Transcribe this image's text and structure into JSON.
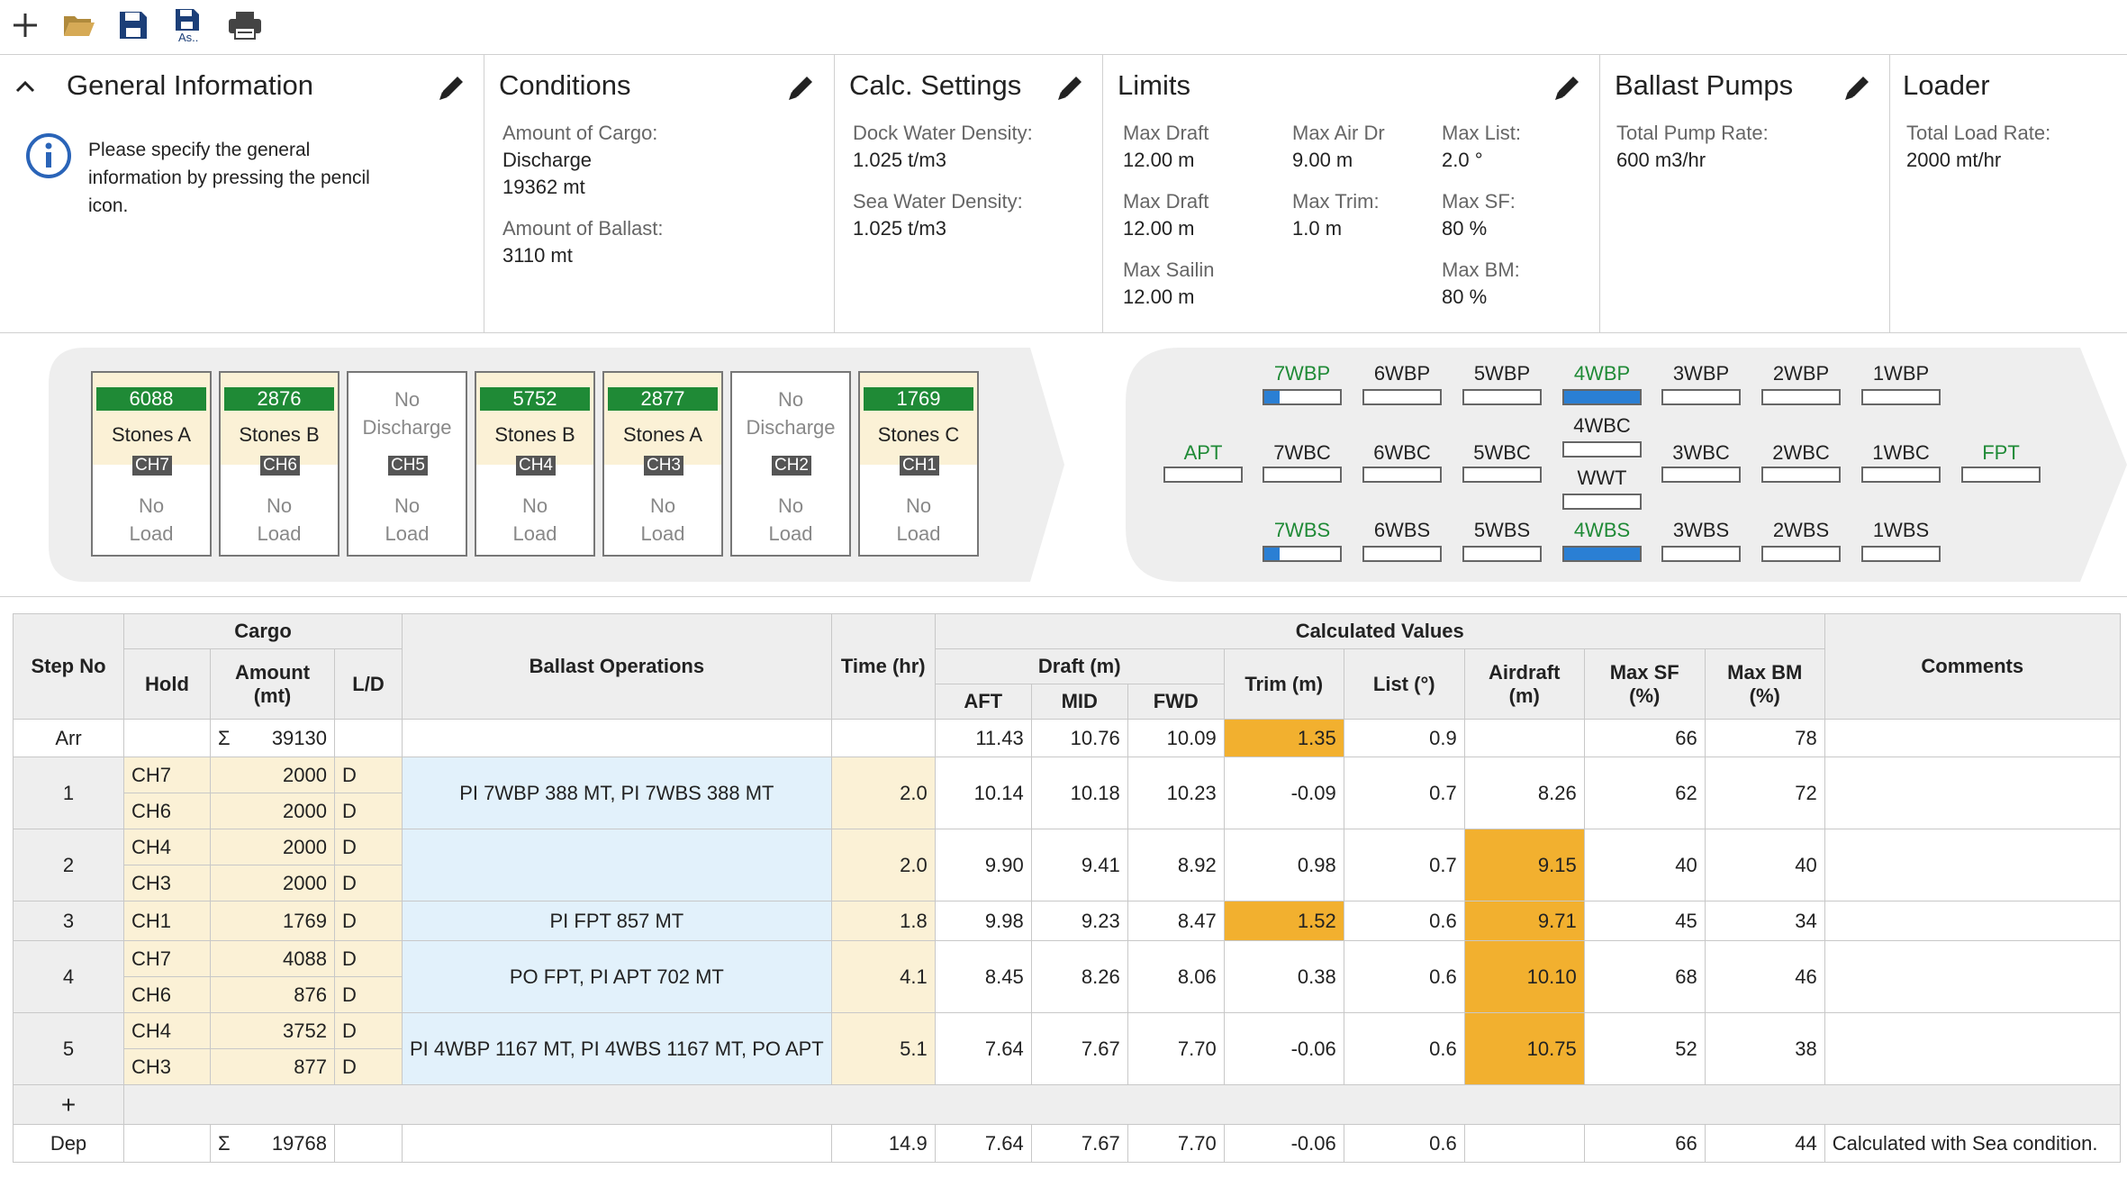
{
  "toolbar": {
    "icons": [
      "plus-icon",
      "folder-open-icon",
      "save-icon",
      "save-as-icon",
      "print-icon"
    ],
    "save_as_label": "As.."
  },
  "general": {
    "title": "General Information",
    "info": "Please specify the general information by pressing the pencil icon.",
    "info_lines": [
      "Please specify the general",
      "information by pressing the pencil",
      "icon."
    ]
  },
  "conditions": {
    "title": "Conditions",
    "cargo_label": "Amount of Cargo:",
    "cargo_mode": "Discharge",
    "cargo_value": "19362 mt",
    "ballast_label": "Amount of Ballast:",
    "ballast_value": "3110 mt"
  },
  "calc": {
    "title": "Calc. Settings",
    "dock_label": "Dock Water Density:",
    "dock_value": "1.025 t/m3",
    "sea_label": "Sea Water Density:",
    "sea_value": "1.025 t/m3"
  },
  "limits": {
    "title": "Limits",
    "items": [
      {
        "label": "Max Draft",
        "value": "12.00 m"
      },
      {
        "label": "Max Air Dr",
        "value": "9.00 m"
      },
      {
        "label": "Max List:",
        "value": "2.0 °"
      },
      {
        "label": "Max Draft",
        "value": "12.00 m"
      },
      {
        "label": "Max Trim:",
        "value": "1.0 m"
      },
      {
        "label": "Max SF:",
        "value": "80 %"
      },
      {
        "label": "Max Sailin",
        "value": "12.00 m"
      },
      {
        "label": "Max BM:",
        "value": "80 %"
      }
    ]
  },
  "pumps": {
    "title": "Ballast Pumps",
    "label": "Total Pump Rate:",
    "value": "600 m3/hr"
  },
  "loader": {
    "title": "Loader",
    "label": "Total Load Rate:",
    "value": "2000 mt/hr"
  },
  "holds": [
    {
      "num": "6088",
      "name": "Stones A",
      "ch": "CH7",
      "load": [
        "No",
        "Load"
      ]
    },
    {
      "num": "2876",
      "name": "Stones B",
      "ch": "CH6",
      "load": [
        "No",
        "Load"
      ]
    },
    {
      "num": "",
      "name": "",
      "nodis": [
        "No",
        "Discharge"
      ],
      "ch": "CH5",
      "load": [
        "No",
        "Load"
      ]
    },
    {
      "num": "5752",
      "name": "Stones B",
      "ch": "CH4",
      "load": [
        "No",
        "Load"
      ]
    },
    {
      "num": "2877",
      "name": "Stones A",
      "ch": "CH3",
      "load": [
        "No",
        "Load"
      ]
    },
    {
      "num": "",
      "name": "",
      "nodis": [
        "No",
        "Discharge"
      ],
      "ch": "CH2",
      "load": [
        "No",
        "Load"
      ]
    },
    {
      "num": "1769",
      "name": "Stones C",
      "ch": "CH1",
      "load": [
        "No",
        "Load"
      ]
    }
  ],
  "tanks": {
    "row1": [
      {
        "label": "7WBP",
        "green": true,
        "fill": 0.2
      },
      {
        "label": "6WBP",
        "green": false,
        "fill": 0
      },
      {
        "label": "5WBP",
        "green": false,
        "fill": 0
      },
      {
        "label": "4WBP",
        "green": true,
        "fill": 1.0
      },
      {
        "label": "3WBP",
        "green": false,
        "fill": 0
      },
      {
        "label": "2WBP",
        "green": false,
        "fill": 0
      },
      {
        "label": "1WBP",
        "green": false,
        "fill": 0
      }
    ],
    "row2": [
      {
        "label": "APT",
        "green": true,
        "fill": 0
      },
      {
        "label": "7WBC",
        "green": false,
        "fill": 0
      },
      {
        "label": "6WBC",
        "green": false,
        "fill": 0
      },
      {
        "label": "5WBC",
        "green": false,
        "fill": 0
      },
      {
        "label": "4WBC",
        "green": false,
        "fill": 0
      },
      {
        "label": "3WBC",
        "green": false,
        "fill": 0
      },
      {
        "label": "2WBC",
        "green": false,
        "fill": 0
      },
      {
        "label": "1WBC",
        "green": false,
        "fill": 0
      },
      {
        "label": "FPT",
        "green": true,
        "fill": 0
      }
    ],
    "wwt": {
      "label": "WWT",
      "fill": 0
    },
    "row3": [
      {
        "label": "7WBS",
        "green": true,
        "fill": 0.2
      },
      {
        "label": "6WBS",
        "green": false,
        "fill": 0
      },
      {
        "label": "5WBS",
        "green": false,
        "fill": 0
      },
      {
        "label": "4WBS",
        "green": true,
        "fill": 1.0
      },
      {
        "label": "3WBS",
        "green": false,
        "fill": 0
      },
      {
        "label": "2WBS",
        "green": false,
        "fill": 0
      },
      {
        "label": "1WBS",
        "green": false,
        "fill": 0
      }
    ]
  },
  "table": {
    "headers": {
      "step": "Step No",
      "cargo": "Cargo",
      "hold": "Hold",
      "amount": "Amount (mt)",
      "ld": "L/D",
      "ballast": "Ballast Operations",
      "time": "Time (hr)",
      "calc": "Calculated Values",
      "draft": "Draft (m)",
      "aft": "AFT",
      "mid": "MID",
      "fwd": "FWD",
      "trim": "Trim (m)",
      "list": "List (°)",
      "airdraft": "Airdraft (m)",
      "maxsf": "Max SF (%)",
      "maxbm": "Max BM (%)",
      "comments": "Comments"
    },
    "arr": {
      "step": "Arr",
      "sigma": "Σ",
      "amount": "39130",
      "aft": "11.43",
      "mid": "10.76",
      "fwd": "10.09",
      "trim": "1.35",
      "list": "0.9",
      "airdraft": "",
      "sf": "66",
      "bm": "78"
    },
    "steps": [
      {
        "step": "1",
        "rows": [
          {
            "hold": "CH7",
            "amount": "2000",
            "ld": "D"
          },
          {
            "hold": "CH6",
            "amount": "2000",
            "ld": "D"
          }
        ],
        "ballast": "PI 7WBP 388 MT, PI 7WBS 388 MT",
        "time": "2.0",
        "aft": "10.14",
        "mid": "10.18",
        "fwd": "10.23",
        "trim": "-0.09",
        "list": "0.7",
        "airdraft": "8.26",
        "sf": "62",
        "bm": "72",
        "trim_warn": false,
        "air_warn": false
      },
      {
        "step": "2",
        "rows": [
          {
            "hold": "CH4",
            "amount": "2000",
            "ld": "D"
          },
          {
            "hold": "CH3",
            "amount": "2000",
            "ld": "D"
          }
        ],
        "ballast": "",
        "time": "2.0",
        "aft": "9.90",
        "mid": "9.41",
        "fwd": "8.92",
        "trim": "0.98",
        "list": "0.7",
        "airdraft": "9.15",
        "sf": "40",
        "bm": "40",
        "trim_warn": false,
        "air_warn": true
      },
      {
        "step": "3",
        "rows": [
          {
            "hold": "CH1",
            "amount": "1769",
            "ld": "D"
          }
        ],
        "ballast": "PI FPT 857 MT",
        "time": "1.8",
        "aft": "9.98",
        "mid": "9.23",
        "fwd": "8.47",
        "trim": "1.52",
        "list": "0.6",
        "airdraft": "9.71",
        "sf": "45",
        "bm": "34",
        "trim_warn": true,
        "air_warn": true
      },
      {
        "step": "4",
        "rows": [
          {
            "hold": "CH7",
            "amount": "4088",
            "ld": "D"
          },
          {
            "hold": "CH6",
            "amount": "876",
            "ld": "D"
          }
        ],
        "ballast": "PO FPT, PI APT 702 MT",
        "time": "4.1",
        "aft": "8.45",
        "mid": "8.26",
        "fwd": "8.06",
        "trim": "0.38",
        "list": "0.6",
        "airdraft": "10.10",
        "sf": "68",
        "bm": "46",
        "trim_warn": false,
        "air_warn": true
      },
      {
        "step": "5",
        "rows": [
          {
            "hold": "CH4",
            "amount": "3752",
            "ld": "D"
          },
          {
            "hold": "CH3",
            "amount": "877",
            "ld": "D"
          }
        ],
        "ballast": "PI 4WBP 1167 MT, PI 4WBS 1167 MT, PO APT",
        "time": "5.1",
        "aft": "7.64",
        "mid": "7.67",
        "fwd": "7.70",
        "trim": "-0.06",
        "list": "0.6",
        "airdraft": "10.75",
        "sf": "52",
        "bm": "38",
        "trim_warn": false,
        "air_warn": true
      }
    ],
    "add_label": "+",
    "dep": {
      "step": "Dep",
      "sigma": "Σ",
      "amount": "19768",
      "time": "14.9",
      "aft": "7.64",
      "mid": "7.67",
      "fwd": "7.70",
      "trim": "-0.06",
      "list": "0.6",
      "sf": "66",
      "bm": "44",
      "comment": "Calculated with Sea condition."
    }
  },
  "colors": {
    "green": "#1f8a36",
    "warn": "#f2b02f",
    "cargo": "#fbf1d6",
    "ballast": "#e2f1fb",
    "blue": "#2a7fd4"
  }
}
